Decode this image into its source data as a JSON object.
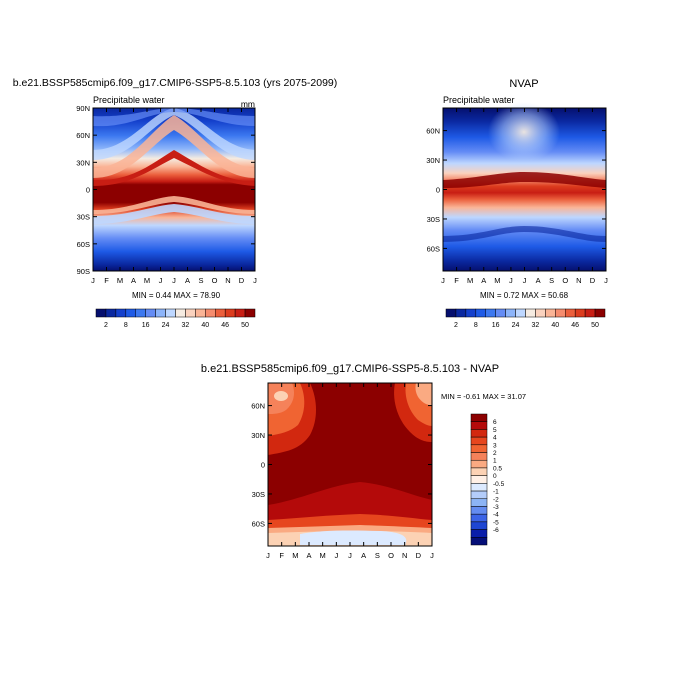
{
  "chart_data": [
    {
      "type": "heatmap",
      "id": "p1",
      "title": "b.e21.BSSP585cmip6.f09_g17.CMIP6-SSP5-8.5.103 (yrs 2075-2099)",
      "left_label": "Precipitable water",
      "right_label": "mm",
      "x_ticks": [
        "J",
        "F",
        "M",
        "A",
        "M",
        "J",
        "J",
        "A",
        "S",
        "O",
        "N",
        "D",
        "J"
      ],
      "y_ticks": [
        "90N",
        "60N",
        "30N",
        "0",
        "30S",
        "60S",
        "90S"
      ],
      "y_tick_lats": [
        90,
        60,
        30,
        0,
        -30,
        -60,
        -90
      ],
      "ylim": [
        -90,
        90
      ],
      "stats": "MIN =  0.44 MAX =  78.90",
      "min": 0.44,
      "max": 78.9
    },
    {
      "type": "heatmap",
      "id": "p2",
      "title": "NVAP",
      "left_label": "Precipitable water",
      "x_ticks": [
        "J",
        "F",
        "M",
        "A",
        "M",
        "J",
        "J",
        "A",
        "S",
        "O",
        "N",
        "D",
        "J"
      ],
      "y_ticks": [
        "60N",
        "30N",
        "0",
        "30S",
        "60S"
      ],
      "y_tick_lats": [
        60,
        30,
        0,
        -30,
        -60
      ],
      "ylim": [
        -83,
        83
      ],
      "stats": "MIN =  0.72 MAX =  50.68",
      "min": 0.72,
      "max": 50.68
    },
    {
      "type": "heatmap",
      "id": "p3",
      "title": "b.e21.BSSP585cmip6.f09_g17.CMIP6-SSP5-8.5.103 - NVAP",
      "x_ticks": [
        "J",
        "F",
        "M",
        "A",
        "M",
        "J",
        "J",
        "A",
        "S",
        "O",
        "N",
        "D",
        "J"
      ],
      "y_ticks": [
        "60N",
        "30N",
        "0",
        "30S",
        "60S"
      ],
      "y_tick_lats": [
        60,
        30,
        0,
        -30,
        -60
      ],
      "ylim": [
        -83,
        83
      ],
      "stats": "MIN = -0.61 MAX =  31.07",
      "min": -0.61,
      "max": 31.07
    }
  ],
  "colorbar_horizontal": {
    "labels": [
      "2",
      "8",
      "16",
      "24",
      "32",
      "40",
      "46",
      "50"
    ],
    "colors": [
      "#050f6e",
      "#0a28a0",
      "#1440cc",
      "#1e5ae6",
      "#3c78f0",
      "#648cf5",
      "#8cb4fa",
      "#bed7ff",
      "#f5ebe1",
      "#fad2be",
      "#fab496",
      "#f58c6e",
      "#eb5f3c",
      "#dc3c1e",
      "#c81e14",
      "#8c0000"
    ]
  },
  "colorbar_vertical": {
    "labels": [
      "6",
      "5",
      "4",
      "3",
      "2",
      "1",
      "0.5",
      "0",
      "-0.5",
      "-1",
      "-2",
      "-3",
      "-4",
      "-5",
      "-6"
    ],
    "colors": [
      "#8c0000",
      "#b40a0a",
      "#d2280f",
      "#e6461e",
      "#f06432",
      "#f5825a",
      "#faaa82",
      "#fcd2b4",
      "#fff0e6",
      "#dceaff",
      "#b4cdfa",
      "#8cb4f5",
      "#648cf0",
      "#3c64e6",
      "#1e46d2",
      "#0a1eaa",
      "#050f78"
    ]
  }
}
